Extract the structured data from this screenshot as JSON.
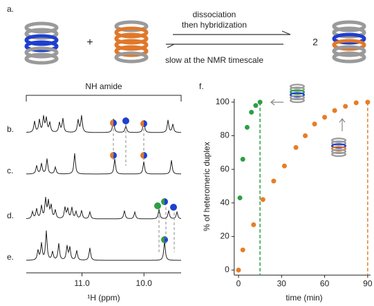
{
  "panel_a": {
    "label": "a.",
    "arrow_top_1": "dissociation",
    "arrow_top_2": "then hybridization",
    "arrow_bottom": "slow at the NMR timescale",
    "plus": "+",
    "coefficient": "2"
  },
  "panel_nmr": {
    "header": "NH amide",
    "spectra": [
      "b.",
      "c.",
      "d.",
      "e."
    ],
    "xlabel": "¹H (ppm)",
    "xlim": [
      11.9,
      9.4
    ],
    "xticks": [
      {
        "value": 11,
        "label": "11.0"
      },
      {
        "value": 10,
        "label": "10.0"
      }
    ]
  },
  "chart_data": {
    "type": "scatter",
    "panel_label": "f.",
    "xlabel": "time (min)",
    "ylabel": "% of heteromeric duplex",
    "xlim": [
      -3,
      92
    ],
    "ylim": [
      -3,
      102
    ],
    "xticks": [
      0,
      30,
      60,
      90
    ],
    "yticks": [
      0,
      20,
      40,
      60,
      80,
      100
    ],
    "series": [
      {
        "color": "#2e9e44",
        "x": [
          1,
          3,
          6,
          9,
          12,
          15
        ],
        "values": [
          43,
          66,
          85,
          94,
          98,
          100
        ]
      },
      {
        "color": "#e87d25",
        "x": [
          0,
          3,
          10.5,
          17,
          24.5,
          32,
          40,
          46.5,
          53,
          60,
          67,
          74.5,
          82,
          90
        ],
        "values": [
          0,
          12,
          27,
          42,
          53,
          62,
          73,
          80,
          87,
          91,
          95,
          97.5,
          99.6,
          100
        ]
      }
    ]
  }
}
